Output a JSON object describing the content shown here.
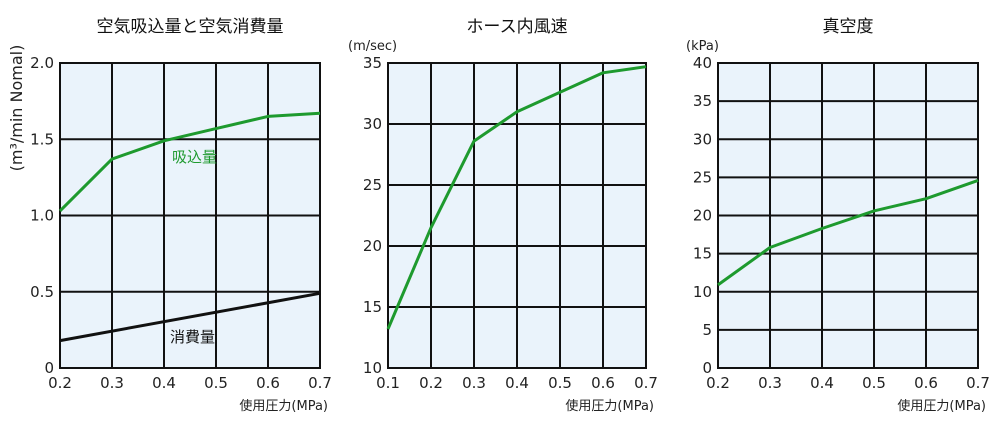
{
  "chart_data": [
    {
      "type": "line",
      "title": "空気吸込量と空気消費量",
      "xlabel": "使用圧力(MPa)",
      "ylabel": "(m³/min Nomal)",
      "xlim": [
        0.2,
        0.7
      ],
      "ylim": [
        0,
        2.0
      ],
      "x_ticks": [
        "0.2",
        "0.3",
        "0.4",
        "0.5",
        "0.6",
        "0.7"
      ],
      "y_ticks": [
        "0",
        "0.5",
        "1.0",
        "1.5",
        "2.0"
      ],
      "grid": true,
      "series": [
        {
          "name": "吸込量",
          "color": "#1e9a2e",
          "x": [
            0.2,
            0.3,
            0.4,
            0.5,
            0.6,
            0.7
          ],
          "y": [
            1.03,
            1.37,
            1.49,
            1.57,
            1.65,
            1.67
          ]
        },
        {
          "name": "消費量",
          "color": "#111111",
          "x": [
            0.2,
            0.7
          ],
          "y": [
            0.18,
            0.49
          ]
        }
      ]
    },
    {
      "type": "line",
      "title": "ホース内風速",
      "xlabel": "使用圧力(MPa)",
      "ylabel": "(m/sec)",
      "xlim": [
        0.1,
        0.7
      ],
      "ylim": [
        10,
        35
      ],
      "x_ticks": [
        "0.1",
        "0.2",
        "0.3",
        "0.4",
        "0.5",
        "0.6",
        "0.7"
      ],
      "y_ticks": [
        "10",
        "15",
        "20",
        "25",
        "30",
        "35"
      ],
      "grid": true,
      "series": [
        {
          "name": "",
          "color": "#1e9a2e",
          "x": [
            0.1,
            0.2,
            0.3,
            0.4,
            0.5,
            0.6,
            0.7
          ],
          "y": [
            13.2,
            21.5,
            28.6,
            31.0,
            32.6,
            34.2,
            34.7
          ]
        }
      ]
    },
    {
      "type": "line",
      "title": "真空度",
      "xlabel": "使用圧力(MPa)",
      "ylabel": "(kPa)",
      "xlim": [
        0.2,
        0.7
      ],
      "ylim": [
        0,
        40
      ],
      "x_ticks": [
        "0.2",
        "0.3",
        "0.4",
        "0.5",
        "0.6",
        "0.7"
      ],
      "y_ticks": [
        "0",
        "5",
        "10",
        "15",
        "20",
        "25",
        "30",
        "35",
        "40"
      ],
      "grid": true,
      "series": [
        {
          "name": "",
          "color": "#1e9a2e",
          "x": [
            0.2,
            0.3,
            0.4,
            0.5,
            0.6,
            0.7
          ],
          "y": [
            10.9,
            15.8,
            18.3,
            20.6,
            22.2,
            24.6
          ]
        }
      ]
    }
  ],
  "colors": {
    "plot_background": "#eaf3fb",
    "grid": "#111111"
  }
}
